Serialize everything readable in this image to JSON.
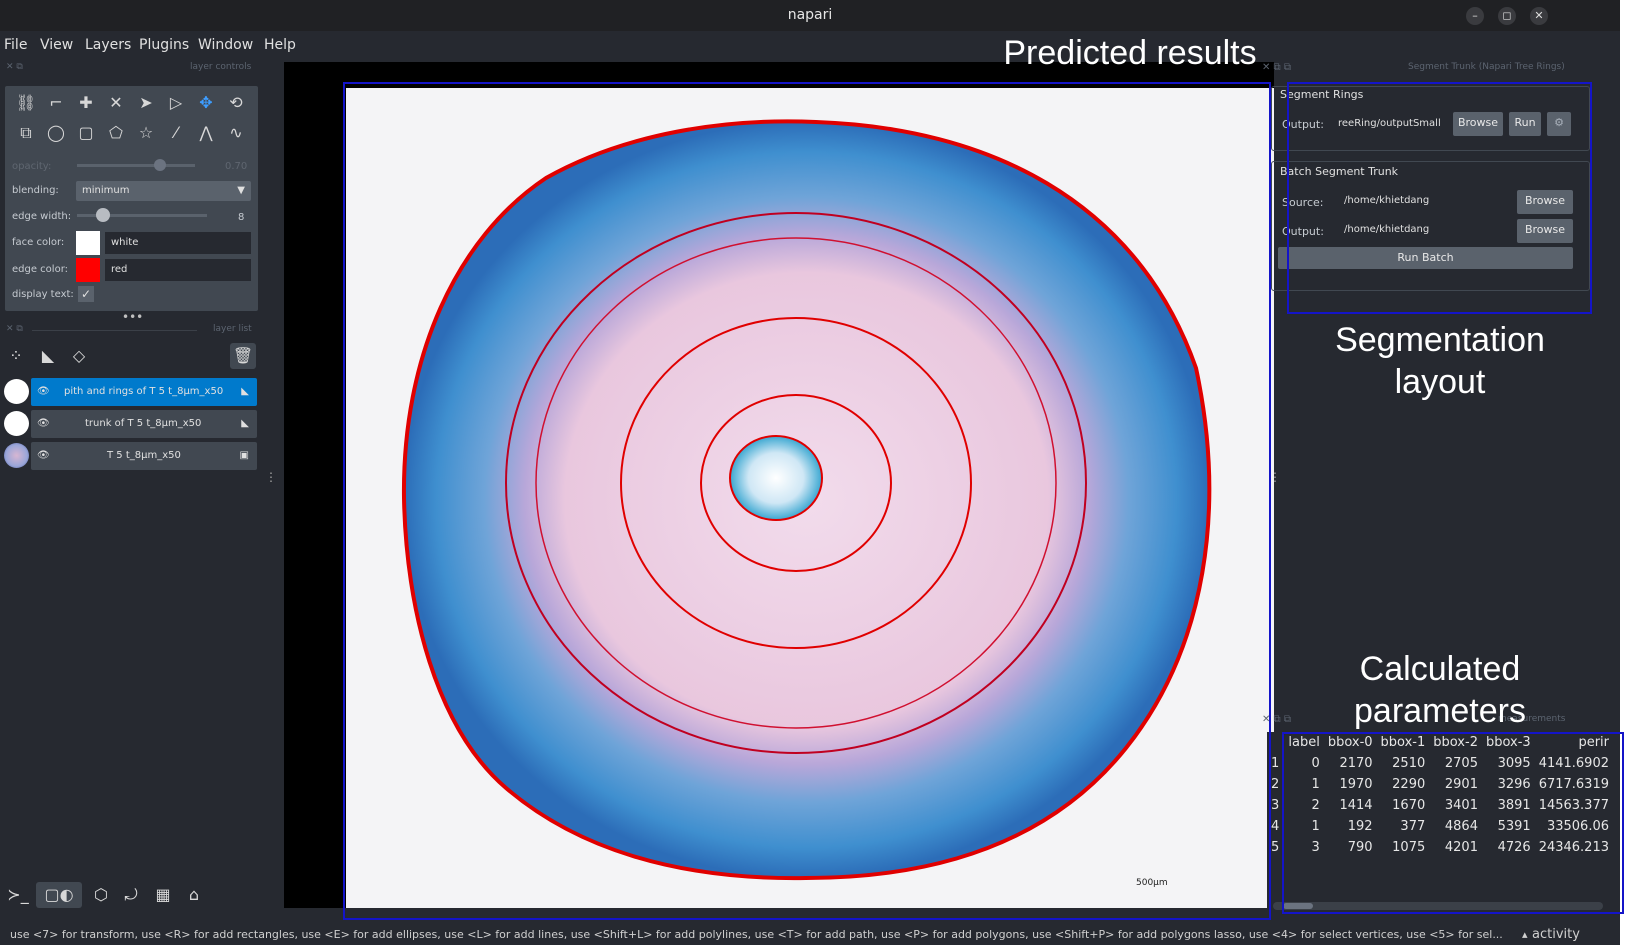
{
  "window": {
    "title": "napari",
    "minimize": "–",
    "maximize": "◻",
    "close": "✕"
  },
  "menu": [
    "File",
    "View",
    "Layers",
    "Plugins",
    "Window",
    "Help"
  ],
  "layer_controls": {
    "header": "layer controls",
    "opacity_label": "opacity:",
    "opacity_value": "0.70",
    "opacity_fraction": 0.7,
    "blending_label": "blending:",
    "blending_value": "minimum",
    "edge_width_label": "edge width:",
    "edge_width_value": "8",
    "edge_width_fraction": 0.2,
    "face_color_label": "face color:",
    "face_color_value": "white",
    "face_color": "#ffffff",
    "edge_color_label": "edge color:",
    "edge_color_value": "red",
    "edge_color": "#ff0000",
    "display_text_label": "display text:",
    "display_text_checked": true
  },
  "layer_list": {
    "header": "layer list",
    "layers": [
      {
        "name": "pith and rings of T 5 t_8µm_x50",
        "type": "shapes",
        "selected": true
      },
      {
        "name": "trunk of T 5 t_8µm_x50",
        "type": "shapes",
        "selected": false
      },
      {
        "name": "T 5 t_8µm_x50",
        "type": "image",
        "selected": false
      }
    ]
  },
  "canvas": {
    "scale_bar": "500µm"
  },
  "annotations": {
    "predicted_results": "Predicted results",
    "segmentation_layout": "Segmentation layout",
    "calculated_parameters": "Calculated parameters"
  },
  "segment_widget": {
    "header": "Segment Trunk (Napari Tree Rings)",
    "segment_rings_title": "Segment Rings",
    "output_label": "Output:",
    "output_value": "reeRing/outputSmall",
    "browse": "Browse",
    "run": "Run",
    "batch_title": "Batch Segment Trunk",
    "source_label": "Source:",
    "source_value": "/home/khietdang",
    "batch_output_label": "Output:",
    "batch_output_value": "/home/khietdang",
    "run_batch": "Run Batch"
  },
  "measurements": {
    "header": "measurements",
    "columns": [
      "label",
      "bbox-0",
      "bbox-1",
      "bbox-2",
      "bbox-3",
      "perir"
    ],
    "rows": [
      {
        "index": "1",
        "cells": [
          "0",
          "2170",
          "2510",
          "2705",
          "3095",
          "4141.6902"
        ]
      },
      {
        "index": "2",
        "cells": [
          "1",
          "1970",
          "2290",
          "2901",
          "3296",
          "6717.6319"
        ]
      },
      {
        "index": "3",
        "cells": [
          "2",
          "1414",
          "1670",
          "3401",
          "3891",
          "14563.377"
        ]
      },
      {
        "index": "4",
        "cells": [
          "1",
          "192",
          "377",
          "4864",
          "5391",
          "33506.06"
        ]
      },
      {
        "index": "5",
        "cells": [
          "3",
          "790",
          "1075",
          "4201",
          "4726",
          "24346.213"
        ]
      }
    ]
  },
  "status": {
    "text": "use <7> for transform, use <R> for add rectangles, use <E> for add ellipses, use <L> for add lines, use <Shift+L> for add polylines, use <T> for add path, use <P> for add polygons, use <Shift+P> for add polygons lasso, use <4> for select vertices, use <5> for sel...",
    "activity": "activity"
  }
}
